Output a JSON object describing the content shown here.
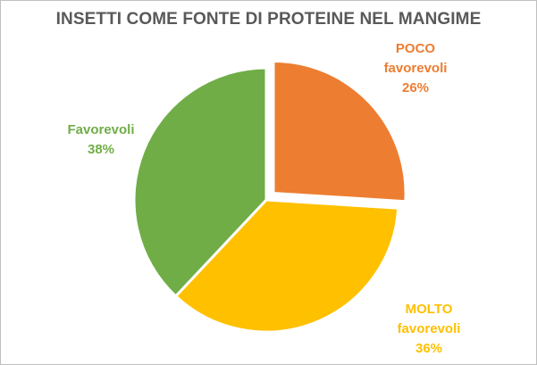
{
  "chart_data": {
    "type": "pie",
    "title": "INSETTI COME FONTE DI PROTEINE NEL MANGIME",
    "slices": [
      {
        "label_lines": [
          "POCO",
          "favorevoli"
        ],
        "value": 26,
        "value_label": "26%",
        "color": "#ed7d31",
        "exploded": true
      },
      {
        "label_lines": [
          "MOLTO",
          "favorevoli"
        ],
        "value": 36,
        "value_label": "36%",
        "color": "#ffc000",
        "exploded": false
      },
      {
        "label_lines": [
          "Favorevoli"
        ],
        "value": 38,
        "value_label": "38%",
        "color": "#70ad47",
        "exploded": false
      }
    ]
  }
}
